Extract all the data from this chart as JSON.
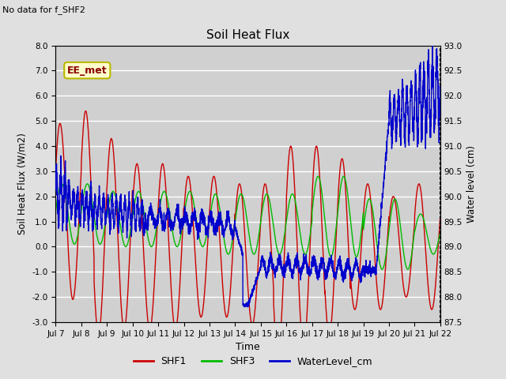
{
  "title": "Soil Heat Flux",
  "no_data_text": "No data for f_SHF2",
  "xlabel": "Time",
  "ylabel_left": "Soil Heat Flux (W/m2)",
  "ylabel_right": "Water level (cm)",
  "ylim_left": [
    -3.0,
    8.0
  ],
  "ylim_right": [
    87.5,
    93.0
  ],
  "yticks_left": [
    -3.0,
    -2.0,
    -1.0,
    0.0,
    1.0,
    2.0,
    3.0,
    4.0,
    5.0,
    6.0,
    7.0,
    8.0
  ],
  "yticks_right": [
    87.5,
    88.0,
    88.5,
    89.0,
    89.5,
    90.0,
    90.5,
    91.0,
    91.5,
    92.0,
    92.5,
    93.0
  ],
  "annotation_text": "EE_met",
  "background_color": "#e0e0e0",
  "plot_bg_color": "#d0d0d0",
  "grid_color": "#ffffff",
  "shf1_color": "#cc0000",
  "shf3_color": "#00bb00",
  "water_color": "#0000cc",
  "legend_labels": [
    "SHF1",
    "SHF3",
    "WaterLevel_cm"
  ],
  "xtick_labels": [
    "Jul 7",
    "Jul 8",
    "Jul 9",
    "Jul 10",
    "Jul 11",
    "Jul 12",
    "Jul 13",
    "Jul 14",
    "Jul 15",
    "Jul 16",
    "Jul 17",
    "Jul 18",
    "Jul 19",
    "Jul 20",
    "Jul 21",
    "Jul 22"
  ]
}
